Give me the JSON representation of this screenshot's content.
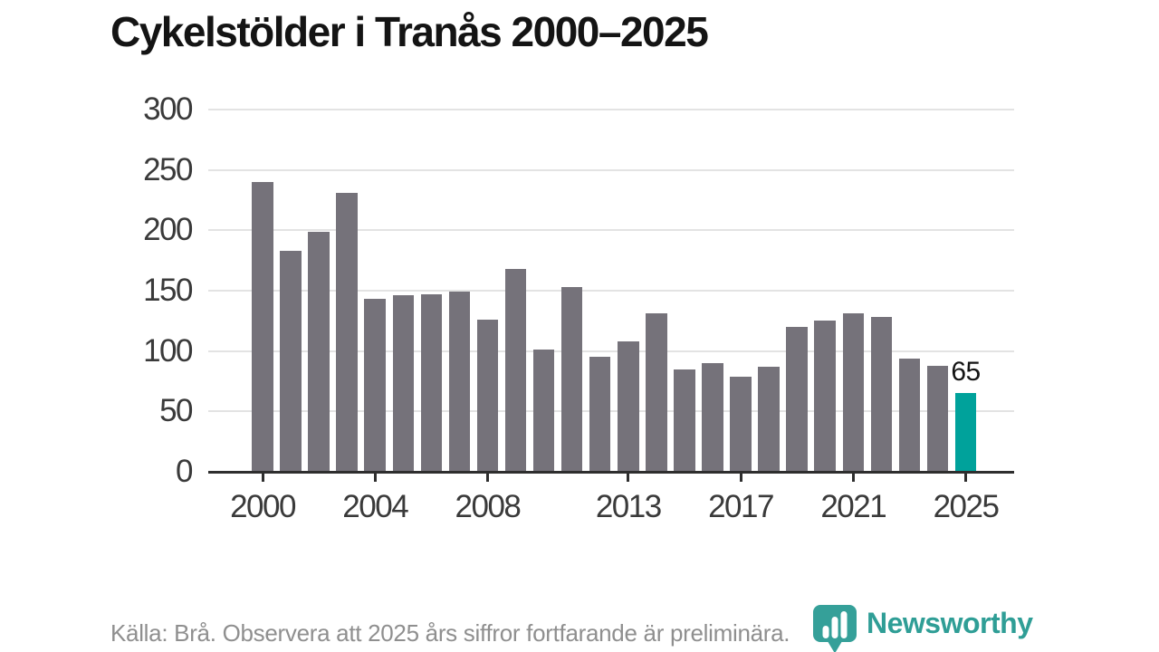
{
  "title": "Cykelstölder i Tranås 2000–2025",
  "footer": {
    "source_note": "Källa: Brå. Observera att 2025 års siffror fortfarande är preliminära.",
    "logo_text": "Newsworthy"
  },
  "colors": {
    "bar_default": "#75727a",
    "bar_highlight": "#00a29b",
    "axis": "#2e2e2e",
    "gridline": "#e3e3e3",
    "tick_label": "#3a3a3a",
    "title_text": "#141414",
    "footer_text": "#8f8f8f",
    "logo_teal": "#35a099",
    "annotation_text": "#141414"
  },
  "chart_data": {
    "type": "bar",
    "title": "Cykelstölder i Tranås 2000–2025",
    "categories": [
      2000,
      2001,
      2002,
      2003,
      2004,
      2005,
      2006,
      2007,
      2008,
      2009,
      2010,
      2011,
      2012,
      2013,
      2014,
      2015,
      2016,
      2017,
      2018,
      2019,
      2020,
      2021,
      2022,
      2023,
      2024,
      2025
    ],
    "values": [
      240,
      183,
      199,
      231,
      143,
      146,
      147,
      149,
      126,
      168,
      101,
      153,
      95,
      108,
      131,
      85,
      90,
      79,
      87,
      120,
      125,
      131,
      128,
      94,
      88,
      65
    ],
    "xlabel": "",
    "ylabel": "",
    "ylim": [
      0,
      300
    ],
    "yticks": [
      0,
      50,
      100,
      150,
      200,
      250,
      300
    ],
    "xticks": [
      2000,
      2004,
      2008,
      2013,
      2017,
      2021,
      2025
    ],
    "grid": "horizontal",
    "legend": "none",
    "highlight_year": 2025,
    "annotation": {
      "year": 2025,
      "label": "65"
    }
  }
}
